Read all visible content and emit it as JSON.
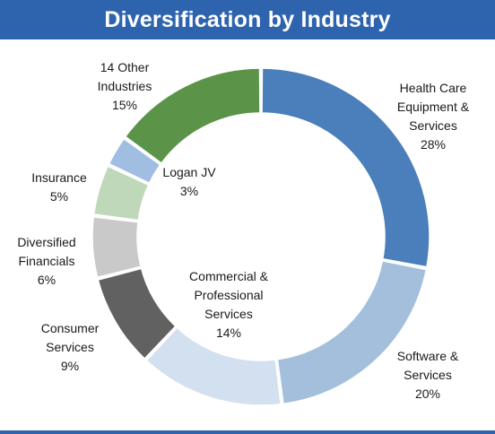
{
  "header": {
    "title": "Diversification by Industry"
  },
  "colors": {
    "title_bar": "#2e63ae"
  },
  "chart_data": {
    "type": "pie",
    "donut": true,
    "title": "Diversification by Industry",
    "slices": [
      {
        "label_lines": [
          "Health Care",
          "Equipment &",
          "Services"
        ],
        "value": 28,
        "value_text": "28%",
        "color": "#4a7fbb"
      },
      {
        "label_lines": [
          "Software &",
          "Services"
        ],
        "value": 20,
        "value_text": "20%",
        "color": "#a3bfdc"
      },
      {
        "label_lines": [
          "Commercial &",
          "Professional",
          "Services"
        ],
        "value": 14,
        "value_text": "14%",
        "color": "#d3e0ef"
      },
      {
        "label_lines": [
          "Consumer",
          "Services"
        ],
        "value": 9,
        "value_text": "9%",
        "color": "#616161"
      },
      {
        "label_lines": [
          "Diversified",
          "Financials"
        ],
        "value": 6,
        "value_text": "6%",
        "color": "#c9c9c9"
      },
      {
        "label_lines": [
          "Insurance"
        ],
        "value": 5,
        "value_text": "5%",
        "color": "#bfd8b9"
      },
      {
        "label_lines": [
          "Logan JV"
        ],
        "value": 3,
        "value_text": "3%",
        "color": "#a0bde2"
      },
      {
        "label_lines": [
          "14 Other",
          "Industries"
        ],
        "value": 15,
        "value_text": "15%",
        "color": "#5b9449"
      }
    ]
  }
}
